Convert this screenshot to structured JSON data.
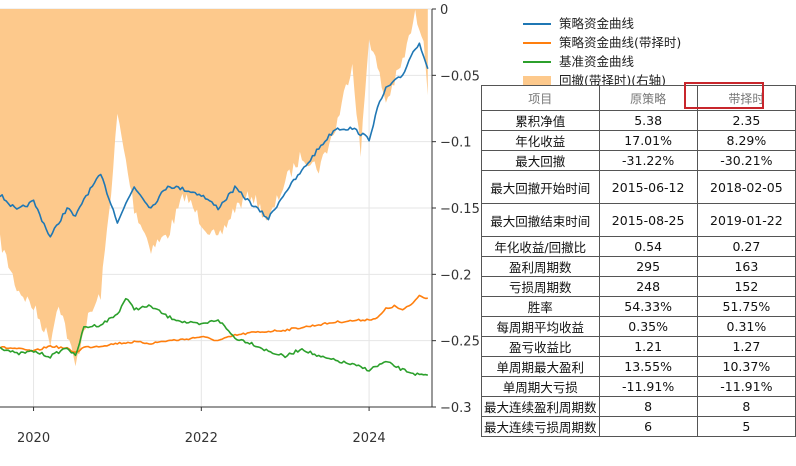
{
  "chart_data": {
    "type": "line",
    "x_ticks": [
      "2020",
      "2022",
      "2024"
    ],
    "x_range": [
      2019.6,
      2024.75
    ],
    "y_right_ticks": [
      "0",
      "−0.05",
      "−0.1",
      "−0.15",
      "−0.2",
      "−0.25",
      "−0.3"
    ],
    "y_right_range": [
      -0.3,
      0
    ],
    "legend": [
      "策略资金曲线",
      "策略资金曲线(带择时)",
      "基准资金曲线",
      "回撤(带择时)(右轴)"
    ],
    "colors": {
      "strategy": "#1f77b4",
      "timing": "#ff7f0e",
      "benchmark": "#2ca02c",
      "drawdown": "#fdc98c"
    },
    "series": [
      {
        "name": "策略资金曲线",
        "x": [
          2019.6,
          2019.8,
          2020.0,
          2020.2,
          2020.4,
          2020.5,
          2020.6,
          2020.8,
          2021.0,
          2021.2,
          2021.4,
          2021.6,
          2021.8,
          2022.0,
          2022.2,
          2022.4,
          2022.6,
          2022.8,
          2023.0,
          2023.2,
          2023.4,
          2023.6,
          2023.8,
          2024.0,
          2024.1,
          2024.2,
          2024.3,
          2024.4,
          2024.5,
          2024.6,
          2024.7
        ],
        "y": [
          -0.14,
          -0.152,
          -0.145,
          -0.172,
          -0.15,
          -0.157,
          -0.143,
          -0.125,
          -0.16,
          -0.134,
          -0.15,
          -0.133,
          -0.136,
          -0.14,
          -0.15,
          -0.135,
          -0.147,
          -0.158,
          -0.138,
          -0.122,
          -0.105,
          -0.09,
          -0.09,
          -0.098,
          -0.075,
          -0.06,
          -0.055,
          -0.05,
          -0.035,
          -0.025,
          -0.045
        ]
      },
      {
        "name": "策略资金曲线(带择时)",
        "x": [
          2019.6,
          2019.8,
          2020.0,
          2020.2,
          2020.4,
          2020.5,
          2020.6,
          2020.8,
          2021.0,
          2021.2,
          2021.4,
          2021.6,
          2021.8,
          2022.0,
          2022.2,
          2022.4,
          2022.6,
          2022.8,
          2023.0,
          2023.2,
          2023.4,
          2023.6,
          2023.8,
          2024.0,
          2024.1,
          2024.2,
          2024.3,
          2024.4,
          2024.5,
          2024.6,
          2024.7
        ],
        "y": [
          -0.255,
          -0.256,
          -0.258,
          -0.254,
          -0.256,
          -0.259,
          -0.255,
          -0.254,
          -0.252,
          -0.251,
          -0.252,
          -0.25,
          -0.249,
          -0.247,
          -0.25,
          -0.246,
          -0.244,
          -0.243,
          -0.242,
          -0.24,
          -0.238,
          -0.236,
          -0.235,
          -0.234,
          -0.233,
          -0.226,
          -0.224,
          -0.227,
          -0.223,
          -0.216,
          -0.218
        ]
      },
      {
        "name": "基准资金曲线",
        "x": [
          2019.6,
          2019.8,
          2020.0,
          2020.2,
          2020.4,
          2020.5,
          2020.6,
          2020.8,
          2021.0,
          2021.1,
          2021.2,
          2021.4,
          2021.6,
          2021.8,
          2022.0,
          2022.2,
          2022.4,
          2022.6,
          2022.8,
          2023.0,
          2023.2,
          2023.4,
          2023.6,
          2023.8,
          2024.0,
          2024.2,
          2024.4,
          2024.6,
          2024.7
        ],
        "y": [
          -0.255,
          -0.26,
          -0.258,
          -0.262,
          -0.255,
          -0.262,
          -0.24,
          -0.238,
          -0.23,
          -0.218,
          -0.226,
          -0.224,
          -0.232,
          -0.236,
          -0.238,
          -0.234,
          -0.248,
          -0.252,
          -0.258,
          -0.262,
          -0.256,
          -0.262,
          -0.265,
          -0.268,
          -0.272,
          -0.266,
          -0.272,
          -0.276,
          -0.276
        ]
      },
      {
        "name": "回撤(带择时)(右轴)",
        "x": [
          2019.6,
          2019.8,
          2020.0,
          2020.2,
          2020.3,
          2020.5,
          2020.6,
          2020.8,
          2020.95,
          2021.0,
          2021.2,
          2021.4,
          2021.6,
          2021.8,
          2022.0,
          2022.2,
          2022.4,
          2022.6,
          2022.8,
          2023.0,
          2023.2,
          2023.4,
          2023.6,
          2023.8,
          2023.9,
          2024.0,
          2024.2,
          2024.4,
          2024.55,
          2024.65,
          2024.7
        ],
        "y": [
          -0.175,
          -0.21,
          -0.225,
          -0.25,
          -0.22,
          -0.27,
          -0.24,
          -0.215,
          -0.12,
          -0.08,
          -0.15,
          -0.18,
          -0.17,
          -0.14,
          -0.16,
          -0.175,
          -0.15,
          -0.14,
          -0.16,
          -0.13,
          -0.11,
          -0.12,
          -0.09,
          -0.04,
          -0.11,
          -0.02,
          -0.07,
          -0.04,
          -0.005,
          -0.02,
          -0.065
        ]
      }
    ]
  },
  "table": {
    "headers": [
      "项目",
      "原策略",
      "带择时"
    ],
    "rows": [
      [
        "累积净值",
        "5.38",
        "2.35"
      ],
      [
        "年化收益",
        "17.01%",
        "8.29%"
      ],
      [
        "最大回撤",
        "-31.22%",
        "-30.21%"
      ],
      [
        "最大回撤开始时间",
        "2015-06-12",
        "2018-02-05"
      ],
      [
        "最大回撤结束时间",
        "2015-08-25",
        "2019-01-22"
      ],
      [
        "年化收益/回撤比",
        "0.54",
        "0.27"
      ],
      [
        "盈利周期数",
        "295",
        "163"
      ],
      [
        "亏损周期数",
        "248",
        "152"
      ],
      [
        "胜率",
        "54.33%",
        "51.75%"
      ],
      [
        "每周期平均收益",
        "0.35%",
        "0.31%"
      ],
      [
        "盈亏收益比",
        "1.21",
        "1.27"
      ],
      [
        "单周期最大盈利",
        "13.55%",
        "10.37%"
      ],
      [
        "单周期大亏损",
        "-11.91%",
        "-11.91%"
      ],
      [
        "最大连续盈利周期数",
        "8",
        "8"
      ],
      [
        "最大连续亏损周期数",
        "6",
        "5"
      ]
    ]
  }
}
